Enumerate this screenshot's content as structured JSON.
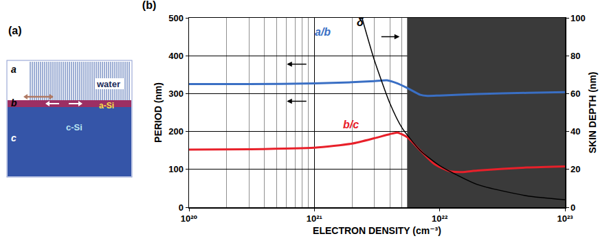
{
  "diagram": {
    "label": "(a)",
    "layers": [
      {
        "letter": "a",
        "label": "water",
        "color": "#3a5ca8"
      },
      {
        "letter": "b",
        "label": "a-Si",
        "color": "#9c2f63"
      },
      {
        "letter": "c",
        "label": "c-Si",
        "color": "#3555a8"
      }
    ]
  },
  "chart_data": {
    "type": "line",
    "title": "(b)",
    "x_label": "ELECTRON DENSITY (cm⁻³)",
    "y_label": "PERIOD (nm)",
    "y2_label": "SKIN DEPTH (nm)",
    "log": "x",
    "grid": true,
    "xlim": [
      1e+20,
      1e+23
    ],
    "xticks": [
      {
        "value": 1e+20,
        "label": "10²⁰"
      },
      {
        "value": 1e+21,
        "label": "10²¹"
      },
      {
        "value": 1e+22,
        "label": "10²²"
      },
      {
        "value": 1e+23,
        "label": "10²³"
      }
    ],
    "ylim": [
      0,
      500
    ],
    "yticks": [
      0,
      100,
      200,
      300,
      400,
      500
    ],
    "y2lim": [
      0,
      100
    ],
    "y2ticks": [
      0,
      20,
      40,
      60,
      80,
      100
    ],
    "shaded_x": [
      5.5e+21,
      1e+23
    ],
    "shaded_color": "#3a3a3a",
    "series": [
      {
        "name": "a/b",
        "color": "#3a6fc4",
        "x": [
          1e+20,
          3e+20,
          1e+21,
          2e+21,
          3e+21,
          3.8e+21,
          4.5e+21,
          5.5e+21,
          7e+21,
          8e+21,
          1e+22,
          2e+22,
          5e+22,
          1e+23
        ],
        "values": [
          325,
          325,
          327,
          330,
          333,
          335,
          328,
          315,
          297,
          294,
          295,
          299,
          302,
          304
        ]
      },
      {
        "name": "b/c",
        "color": "#e8202a",
        "x": [
          1e+20,
          3e+20,
          1e+21,
          2e+21,
          3e+21,
          4e+21,
          4.6e+21,
          5.5e+21,
          7e+21,
          9e+21,
          1.2e+22,
          1.5e+22,
          2e+22,
          5e+22,
          1e+23
        ],
        "values": [
          152,
          153,
          157,
          168,
          182,
          193,
          197,
          185,
          150,
          115,
          95,
          93,
          97,
          105,
          108
        ]
      },
      {
        "name": "δ",
        "color": "#000000",
        "axis": "y2",
        "x": [
          2.4e+21,
          3e+21,
          4e+21,
          5e+21,
          7e+21,
          1e+22,
          2e+22,
          5e+22,
          1e+23
        ],
        "values": [
          100,
          78,
          55,
          42,
          30,
          22,
          12,
          6,
          4
        ]
      }
    ]
  }
}
